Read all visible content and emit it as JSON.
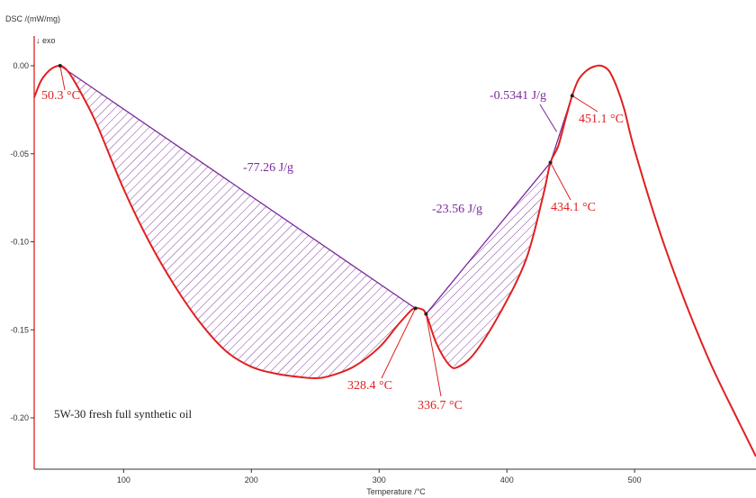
{
  "chart_data": {
    "type": "line",
    "ylabel": "DSC /(mW/mg)",
    "exo_marker": "↓ exo",
    "xlabel": "Temperature /°C",
    "sample_label": "5W-30 fresh full synthetic oil",
    "xlim": [
      30,
      595
    ],
    "ylim": [
      -0.23,
      0.015
    ],
    "x_ticks": [
      100,
      200,
      300,
      400,
      500
    ],
    "y_ticks": [
      0.0,
      -0.05,
      -0.1,
      -0.15,
      -0.2
    ],
    "y_tick_labels": [
      "0.00",
      "-0.05",
      "-0.10",
      "-0.15",
      "-0.20"
    ],
    "colors": {
      "curve": "#e02020",
      "baseline": "#7a2a9a",
      "hatch": "#7a2a9a",
      "peak_label": "#e02020",
      "enthalpy_label": "#7a2a9a"
    },
    "series": [
      {
        "x": [
          30,
          35,
          40,
          45,
          50.3,
          55,
          60,
          70,
          80,
          100,
          120,
          140,
          160,
          180,
          200,
          220,
          240,
          250,
          260,
          280,
          300,
          315,
          325,
          328.4,
          332,
          336.7,
          345,
          355,
          362,
          375,
          395,
          415,
          428,
          434.1,
          440,
          446,
          451.1,
          456,
          462,
          468,
          474,
          480,
          486,
          492,
          500,
          520,
          540,
          560,
          580,
          595
        ],
        "y": [
          -0.018,
          -0.009,
          -0.004,
          -0.001,
          0.0,
          -0.002,
          -0.007,
          -0.02,
          -0.035,
          -0.07,
          -0.1,
          -0.125,
          -0.146,
          -0.162,
          -0.171,
          -0.175,
          -0.177,
          -0.1775,
          -0.1765,
          -0.171,
          -0.16,
          -0.147,
          -0.139,
          -0.1378,
          -0.138,
          -0.141,
          -0.158,
          -0.17,
          -0.171,
          -0.163,
          -0.14,
          -0.11,
          -0.075,
          -0.055,
          -0.046,
          -0.03,
          -0.017,
          -0.008,
          -0.003,
          -0.0005,
          0.0,
          -0.003,
          -0.012,
          -0.025,
          -0.048,
          -0.095,
          -0.135,
          -0.17,
          -0.2,
          -0.222
        ]
      }
    ],
    "baselines": [
      {
        "x": [
          50.3,
          328.4
        ],
        "y": [
          0.0,
          -0.1378
        ]
      },
      {
        "x": [
          336.7,
          434.1
        ],
        "y": [
          -0.141,
          -0.055
        ]
      },
      {
        "x": [
          434.1,
          451.1
        ],
        "y": [
          -0.055,
          -0.017
        ]
      }
    ],
    "peak_annotations": [
      {
        "label": "50.3 °C",
        "x": 50.3,
        "y": 0.0
      },
      {
        "label": "328.4 °C",
        "x": 328.4,
        "y": -0.1378
      },
      {
        "label": "336.7 °C",
        "x": 336.7,
        "y": -0.141
      },
      {
        "label": "434.1 °C",
        "x": 434.1,
        "y": -0.055
      },
      {
        "label": "451.1 °C",
        "x": 451.1,
        "y": -0.017
      }
    ],
    "enthalpy_annotations": [
      {
        "label": "-77.26 J/g",
        "x": 226,
        "y": -0.074
      },
      {
        "label": "-23.56 J/g",
        "x": 388,
        "y": -0.1
      },
      {
        "label": "-0.5341 J/g",
        "x": 439,
        "y": -0.0375
      }
    ]
  }
}
